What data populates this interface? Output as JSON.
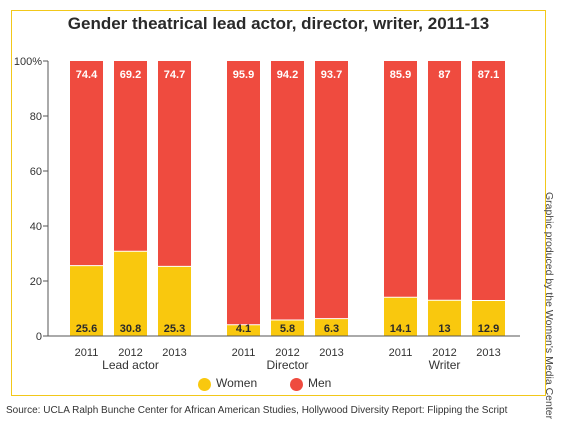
{
  "chart_data": {
    "type": "bar",
    "stacked": true,
    "title": "Gender theatrical lead actor, director, writer, 2011-13",
    "ylim": [
      0,
      100
    ],
    "yticks": [
      "0",
      "20",
      "40",
      "60",
      "80",
      "100%"
    ],
    "groups": [
      {
        "label": "Lead actor",
        "categories": [
          "2011",
          "2012",
          "2013"
        ]
      },
      {
        "label": "Director",
        "categories": [
          "2011",
          "2012",
          "2013"
        ]
      },
      {
        "label": "Writer",
        "categories": [
          "2011",
          "2012",
          "2013"
        ]
      }
    ],
    "series": [
      {
        "name": "Women",
        "color": "#f9c80e",
        "values": [
          25.6,
          30.8,
          25.3,
          4.1,
          5.8,
          6.3,
          14.1,
          13,
          12.9
        ],
        "labels": [
          "25.6",
          "30.8",
          "25.3",
          "4.1",
          "5.8",
          "6.3",
          "14.1",
          "13",
          "12.9"
        ]
      },
      {
        "name": "Men",
        "color": "#ef4b3f",
        "values": [
          74.4,
          69.2,
          74.7,
          95.9,
          94.2,
          93.7,
          85.9,
          87,
          87.1
        ],
        "labels": [
          "74.4",
          "69.2",
          "74.7",
          "95.9",
          "94.2",
          "93.7",
          "85.9",
          "87",
          "87.1"
        ]
      }
    ],
    "legend": "bottom-center",
    "grid": false
  },
  "side_note": "Graphic produced by the Women's Media Center",
  "source": "Source: UCLA Ralph Bunche Center for African American Studies, Hollywood Diversity Report: Flipping the Script"
}
